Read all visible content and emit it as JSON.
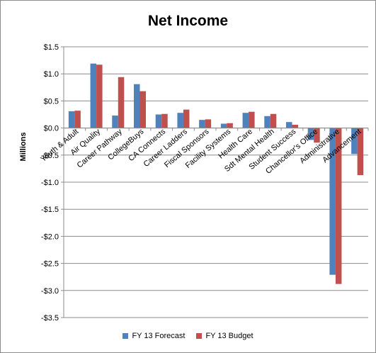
{
  "chart_data": {
    "type": "bar",
    "title": "Net Income",
    "xlabel": "",
    "ylabel": "Millions",
    "ylim": [
      -3.5,
      1.5
    ],
    "yticks": [
      1.5,
      1.0,
      0.5,
      0.0,
      -0.5,
      -1.0,
      -1.5,
      -2.0,
      -2.5,
      -3.0,
      -3.5
    ],
    "ytick_labels": [
      "$1.5",
      "$1.0",
      "$0.5",
      "$0.0",
      "-$0.5",
      "-$1.0",
      "-$1.5",
      "-$2.0",
      "-$2.5",
      "-$3.0",
      "-$3.5"
    ],
    "categories": [
      "Youth & Adult",
      "Air Quality",
      "Career Pathway",
      "CollegeBuys",
      "CA Connects",
      "Career Ladders",
      "Fiscal Sponsors",
      "Facility Systems",
      "Health Care",
      "Sdt Mental Health",
      "Student Success",
      "Chancellor's Office",
      "Administrative",
      "Advancement"
    ],
    "series": [
      {
        "name": "FY 13 Forecast",
        "color": "#4f81bd",
        "values": [
          0.31,
          1.19,
          0.23,
          0.81,
          0.25,
          0.28,
          0.15,
          0.08,
          0.28,
          0.22,
          0.11,
          -0.22,
          -2.71,
          -0.48
        ]
      },
      {
        "name": "FY 13 Budget",
        "color": "#c0504d",
        "values": [
          0.32,
          1.17,
          0.94,
          0.68,
          0.26,
          0.34,
          0.16,
          0.09,
          0.3,
          0.26,
          0.06,
          -0.27,
          -2.88,
          -0.87
        ]
      }
    ],
    "grid": true,
    "legend_position": "bottom"
  }
}
